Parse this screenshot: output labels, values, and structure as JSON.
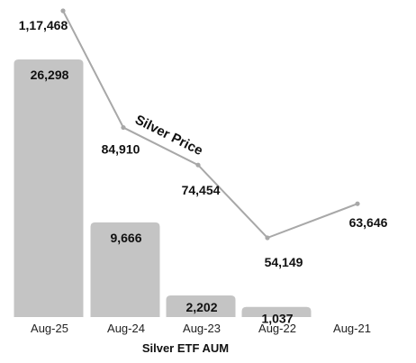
{
  "chart_data": {
    "type": "bar",
    "categories": [
      "Aug-25",
      "Aug-24",
      "Aug-23",
      "Aug-22",
      "Aug-21"
    ],
    "xlabel": "Silver ETF AUM",
    "ylabel": "",
    "series": [
      {
        "name": "Silver ETF AUM",
        "type": "bar",
        "values": [
          26298,
          9666,
          2202,
          1037,
          null
        ],
        "labels": [
          "26,298",
          "9,666",
          "2,202",
          "1,037",
          ""
        ],
        "color": "#c4c4c4"
      },
      {
        "name": "Silver Price",
        "type": "line",
        "values": [
          117468,
          84910,
          74454,
          54149,
          63646
        ],
        "labels": [
          "1,17,468",
          "84,910",
          "74,454",
          "54,149",
          "63,646"
        ],
        "color": "#a8a8a8"
      }
    ],
    "grid": false
  }
}
